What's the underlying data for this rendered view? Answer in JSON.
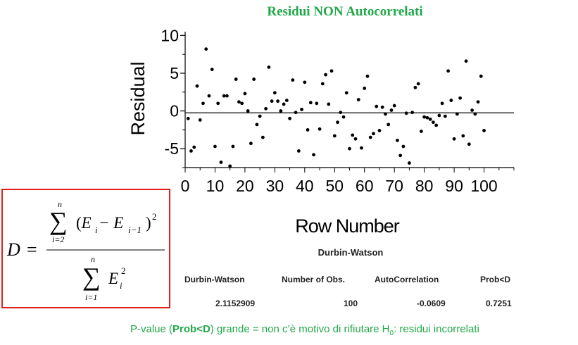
{
  "title": "Residui NON Autocorrelati",
  "chart_data": {
    "type": "scatter",
    "title": "Residui NON Autocorrelati",
    "xlabel": "Row Number",
    "ylabel": "Residual",
    "xlim": [
      0,
      110
    ],
    "ylim": [
      -7.5,
      10.5
    ],
    "xticks": [
      0,
      10,
      20,
      30,
      40,
      50,
      60,
      70,
      80,
      90,
      100
    ],
    "yticks": [
      10,
      5,
      0,
      -5
    ],
    "reference_line_y": -0.25,
    "grid": false,
    "x": [
      1,
      2,
      3,
      4,
      5,
      6,
      7,
      8,
      9,
      10,
      11,
      12,
      13,
      14,
      15,
      16,
      17,
      18,
      19,
      20,
      21,
      22,
      23,
      24,
      25,
      26,
      27,
      28,
      29,
      30,
      31,
      32,
      33,
      34,
      35,
      36,
      37,
      38,
      39,
      40,
      41,
      42,
      43,
      44,
      45,
      46,
      47,
      48,
      49,
      50,
      51,
      52,
      53,
      54,
      55,
      56,
      57,
      58,
      59,
      60,
      61,
      62,
      63,
      64,
      65,
      66,
      67,
      68,
      69,
      70,
      71,
      72,
      73,
      74,
      75,
      76,
      77,
      78,
      79,
      80,
      81,
      82,
      83,
      84,
      85,
      86,
      87,
      88,
      89,
      90,
      91,
      92,
      93,
      94,
      95,
      96,
      97,
      98,
      99,
      100
    ],
    "y": [
      -1.0,
      -5.3,
      -4.8,
      3.3,
      -1.2,
      1.0,
      8.2,
      2.0,
      5.5,
      -4.7,
      1.0,
      -6.8,
      2.0,
      2.0,
      -7.3,
      -4.7,
      4.2,
      1.2,
      1.0,
      2.3,
      0.0,
      -4.3,
      4.2,
      -1.8,
      -0.7,
      -3.5,
      0.3,
      5.8,
      1.3,
      2.4,
      1.3,
      0.0,
      0.9,
      1.4,
      -1.0,
      4.1,
      -0.2,
      -5.3,
      0.2,
      3.8,
      -2.5,
      1.1,
      -5.8,
      1.0,
      -2.4,
      3.6,
      4.8,
      0.9,
      5.3,
      -3.3,
      -1.5,
      -0.2,
      -0.8,
      2.4,
      -5.0,
      -3.2,
      -3.7,
      1.5,
      -4.9,
      3.0,
      4.6,
      -3.5,
      -3.0,
      0.6,
      -2.6,
      0.5,
      -0.4,
      -1.8,
      0.1,
      0.7,
      -3.9,
      -5.9,
      -4.7,
      -0.3,
      -6.9,
      -0.2,
      3.1,
      3.6,
      -2.7,
      -0.8,
      -0.9,
      -1.1,
      -1.5,
      -1.9,
      -0.6,
      1.0,
      -0.7,
      5.3,
      1.4,
      -3.7,
      -0.4,
      1.7,
      -3.3,
      6.6,
      -4.4,
      0.1,
      -0.4,
      1.2,
      4.6,
      -2.6
    ]
  },
  "formula": {
    "lhs": "D",
    "equals": "=",
    "numerator": {
      "sum_top": "n",
      "sum_bottom": "i=2",
      "body": "(E",
      "sub1": "i",
      "minus": " − E",
      "sub2": "i−1",
      "close": ")",
      "power": "2"
    },
    "denominator": {
      "sum_top": "n",
      "sum_bottom": "i=1",
      "body": "E",
      "sub": "i",
      "power": "2"
    }
  },
  "durbin_watson": {
    "heading": "Durbin-Watson",
    "columns": [
      {
        "header": "Durbin-Watson",
        "value": "2.1152909"
      },
      {
        "header": "Number of Obs.",
        "value": "100"
      },
      {
        "header": "AutoCorrelation",
        "value": "-0.0609"
      },
      {
        "header": "Prob<D",
        "value": "0.7251"
      }
    ]
  },
  "note": {
    "prefix": "P-value (",
    "bold": "Prob<D",
    "middle": ") grande = non c’è motivo di rifiutare H",
    "sub": "0",
    "suffix": ": residui incorrelati"
  }
}
